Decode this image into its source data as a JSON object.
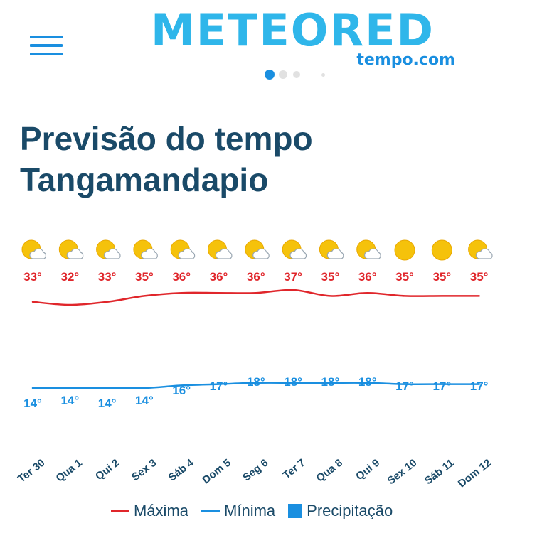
{
  "header": {
    "logo_text": "METEORED",
    "logo_sub": "tempo.com",
    "pager": {
      "count": 4,
      "active": 0
    }
  },
  "title": {
    "line1": "Previsão do tempo",
    "line2": "Tangamandapio"
  },
  "chart_data": {
    "type": "line",
    "categories": [
      "Ter 30",
      "Qua 1",
      "Qui 2",
      "Sex 3",
      "Sáb 4",
      "Dom 5",
      "Seg 6",
      "Ter 7",
      "Qua 8",
      "Qui 9",
      "Sex 10",
      "Sáb 11",
      "Dom 12"
    ],
    "icons": [
      "sun-cloud-icon",
      "sun-cloud-icon",
      "sun-cloud-icon",
      "sun-cloud-icon",
      "sun-cloud-icon",
      "sun-cloud-icon",
      "sun-cloud-icon",
      "sun-cloud-icon",
      "sun-cloud-icon",
      "sun-cloud-icon",
      "sun-icon",
      "sun-icon",
      "sun-cloud-icon"
    ],
    "series": [
      {
        "name": "Máxima",
        "color": "#e0262b",
        "values": [
          33,
          32,
          33,
          35,
          36,
          36,
          36,
          37,
          35,
          36,
          35,
          35,
          35
        ]
      },
      {
        "name": "Mínima",
        "color": "#1a8fe0",
        "values": [
          14,
          14,
          14,
          14,
          16,
          17,
          18,
          18,
          18,
          18,
          17,
          17,
          17
        ]
      }
    ],
    "legend": [
      {
        "label": "Máxima",
        "color": "#e0262b",
        "shape": "line"
      },
      {
        "label": "Mínima",
        "color": "#1a8fe0",
        "shape": "line"
      },
      {
        "label": "Precipitação",
        "color": "#1a8fe0",
        "shape": "box"
      }
    ],
    "legend_position": "bottom",
    "grid": false
  },
  "colors": {
    "title": "#1a4a68",
    "max": "#e0262b",
    "min": "#1a8fe0",
    "logo": "#2fb6ea",
    "sun": "#f5c20b"
  }
}
